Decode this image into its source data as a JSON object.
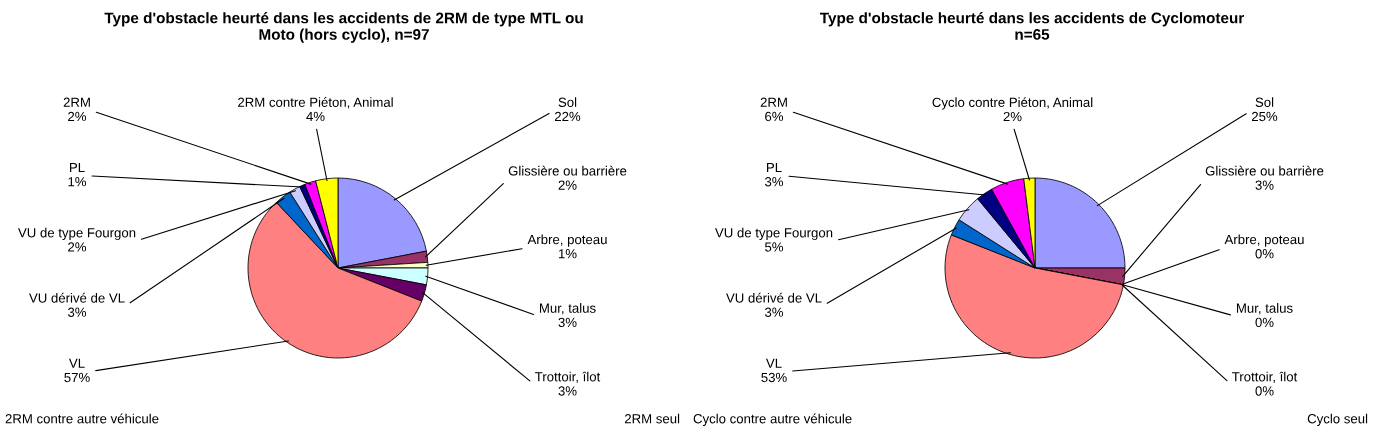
{
  "chart_data": [
    {
      "type": "pie",
      "value_labels": [
        "22%",
        "2%",
        "1%",
        "3%",
        "3%",
        "57%",
        "3%",
        "2%",
        "1%",
        "2%",
        "4%"
      ],
      "title": "Type d'obstacle heurté dans les accidents de 2RM de type MTL ou\nMoto (hors cyclo), n=97",
      "categories": [
        "Sol",
        "Glissière ou barrière",
        "Arbre, poteau",
        "Mur, talus",
        "Trottoir, îlot",
        "VL",
        "VU dérivé de VL",
        "VU de type Fourgon",
        "PL",
        "2RM",
        "2RM contre Piéton, Animal"
      ],
      "values": [
        22,
        2,
        1,
        3,
        3,
        57,
        3,
        2,
        1,
        2,
        4
      ],
      "colors": [
        "#9999ff",
        "#993366",
        "#ffffcc",
        "#ccffff",
        "#660066",
        "#ff8080",
        "#0066cc",
        "#ccccff",
        "#000080",
        "#ff00ff",
        "#ffff00"
      ],
      "annotations": [
        "2RM contre autre véhicule",
        "2RM seul"
      ]
    },
    {
      "type": "pie",
      "value_labels": [
        "25%",
        "3%",
        "0%",
        "0%",
        "0%",
        "53%",
        "3%",
        "5%",
        "3%",
        "6%",
        "2%"
      ],
      "title": "Type d'obstacle heurté dans les accidents de Cyclomoteur\nn=65",
      "categories": [
        "Sol",
        "Glissière ou barrière",
        "Arbre, poteau",
        "Mur, talus",
        "Trottoir, îlot",
        "VL",
        "VU dérivé de VL",
        "VU de type Fourgon",
        "PL",
        "2RM",
        "Cyclo contre Piéton, Animal"
      ],
      "values": [
        25,
        3,
        0,
        0,
        0,
        53,
        3,
        5,
        3,
        6,
        2
      ],
      "colors": [
        "#9999ff",
        "#993366",
        "#ffffcc",
        "#ccffff",
        "#660066",
        "#ff8080",
        "#0066cc",
        "#ccccff",
        "#000080",
        "#ff00ff",
        "#ffff00"
      ],
      "annotations": [
        "Cyclo contre autre véhicule",
        "Cyclo seul"
      ]
    }
  ]
}
